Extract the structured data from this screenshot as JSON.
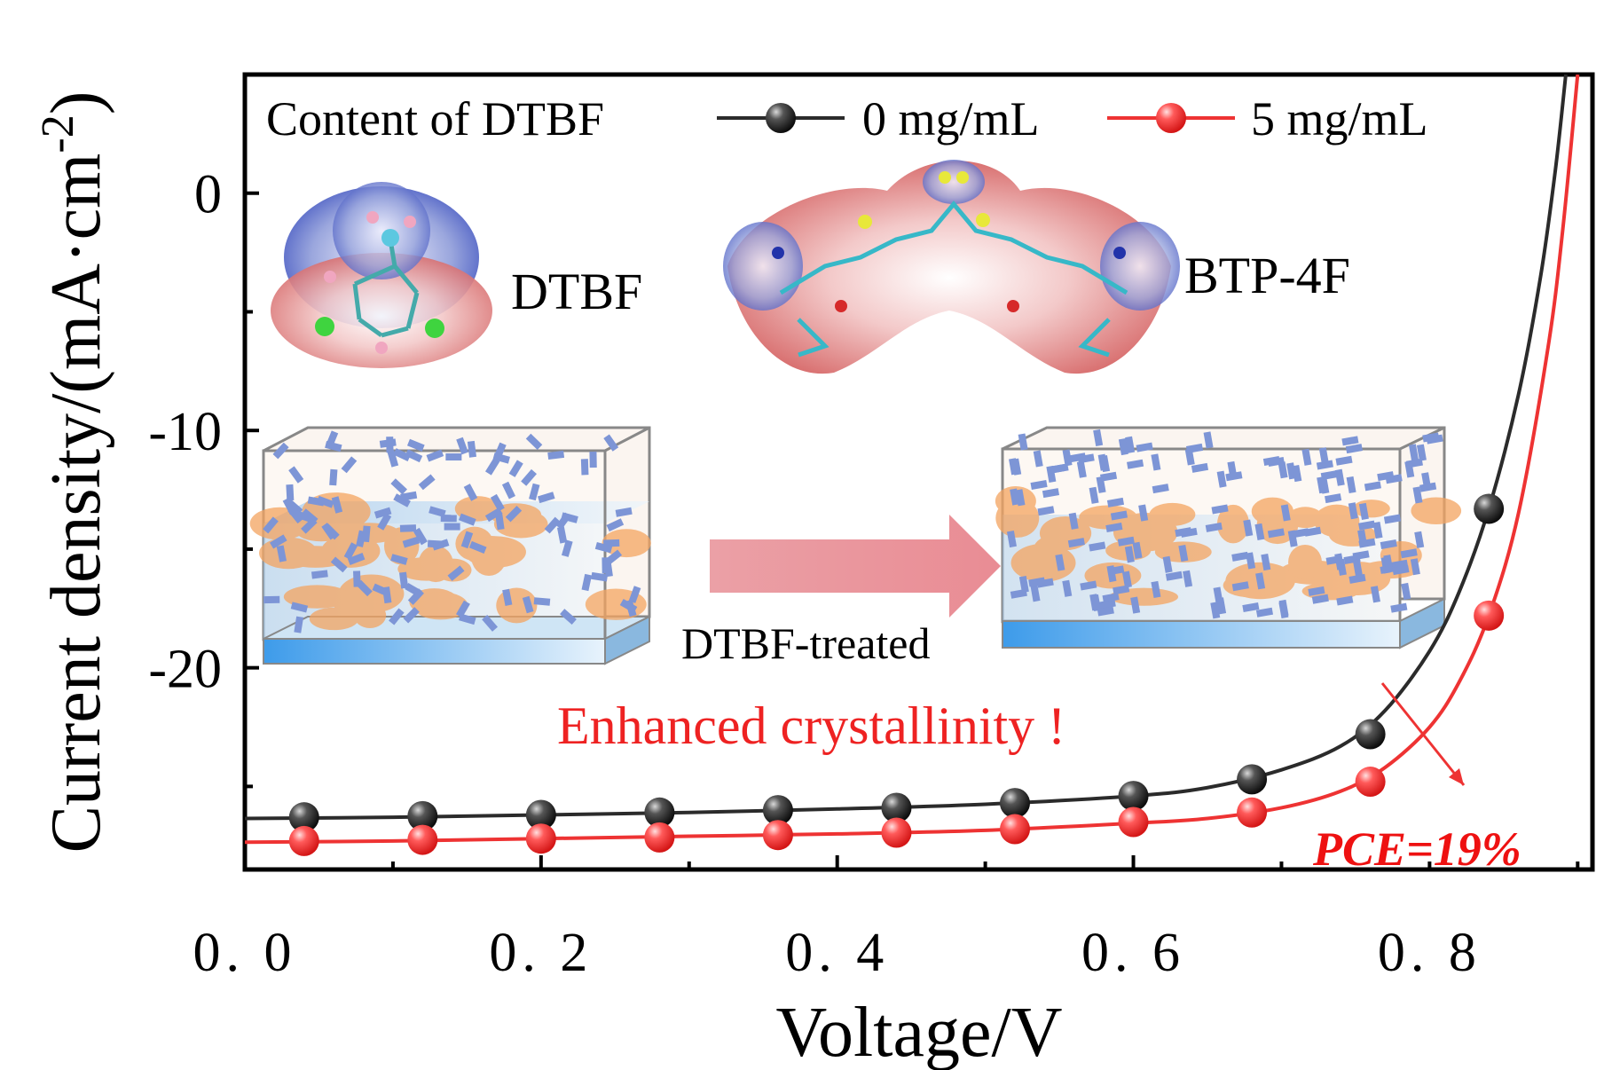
{
  "chart_data": {
    "type": "line",
    "xlabel": "Voltage/V",
    "ylabel_main": "Current density/(mA·cm",
    "ylabel_sup": "-2",
    "ylabel_close": ")",
    "xlim": [
      0.0,
      0.91
    ],
    "ylim": [
      -28.5,
      5
    ],
    "xticks": [
      0.0,
      0.2,
      0.4,
      0.6,
      0.8
    ],
    "xtick_labels": [
      "0. 0",
      "0. 2",
      "0. 4",
      "0. 6",
      "0. 8"
    ],
    "yticks": [
      0,
      -10,
      -20
    ],
    "ytick_labels": [
      "0",
      "-10",
      "-20"
    ],
    "legend_title": "Content of DTBF",
    "series": [
      {
        "name": "0 mg/mL",
        "color": "#2b2b2b",
        "marker": "sphere-black",
        "points": [
          [
            0.04,
            -26.3
          ],
          [
            0.12,
            -26.25
          ],
          [
            0.2,
            -26.2
          ],
          [
            0.28,
            -26.1
          ],
          [
            0.36,
            -26.0
          ],
          [
            0.44,
            -25.9
          ],
          [
            0.52,
            -25.7
          ],
          [
            0.6,
            -25.4
          ],
          [
            0.68,
            -24.7
          ],
          [
            0.76,
            -22.8
          ],
          [
            0.84,
            -13.3
          ]
        ],
        "fit": [
          [
            0.0,
            -26.35
          ],
          [
            0.1,
            -26.3
          ],
          [
            0.2,
            -26.2
          ],
          [
            0.3,
            -26.1
          ],
          [
            0.4,
            -25.95
          ],
          [
            0.5,
            -25.75
          ],
          [
            0.6,
            -25.4
          ],
          [
            0.65,
            -25.05
          ],
          [
            0.7,
            -24.3
          ],
          [
            0.74,
            -23.3
          ],
          [
            0.77,
            -21.8
          ],
          [
            0.8,
            -19.3
          ],
          [
            0.82,
            -16.8
          ],
          [
            0.84,
            -13.3
          ],
          [
            0.86,
            -8.5
          ],
          [
            0.875,
            -3.5
          ],
          [
            0.885,
            1.0
          ],
          [
            0.892,
            5.0
          ]
        ]
      },
      {
        "name": "5 mg/mL",
        "color": "#ee3333",
        "marker": "sphere-red",
        "points": [
          [
            0.04,
            -27.3
          ],
          [
            0.12,
            -27.25
          ],
          [
            0.2,
            -27.2
          ],
          [
            0.28,
            -27.15
          ],
          [
            0.36,
            -27.05
          ],
          [
            0.44,
            -26.95
          ],
          [
            0.52,
            -26.8
          ],
          [
            0.6,
            -26.5
          ],
          [
            0.68,
            -26.1
          ],
          [
            0.76,
            -24.8
          ],
          [
            0.84,
            -17.8
          ]
        ],
        "fit": [
          [
            0.0,
            -27.35
          ],
          [
            0.1,
            -27.3
          ],
          [
            0.2,
            -27.2
          ],
          [
            0.3,
            -27.1
          ],
          [
            0.4,
            -27.0
          ],
          [
            0.5,
            -26.85
          ],
          [
            0.6,
            -26.55
          ],
          [
            0.65,
            -26.35
          ],
          [
            0.7,
            -25.9
          ],
          [
            0.74,
            -25.2
          ],
          [
            0.77,
            -24.2
          ],
          [
            0.8,
            -22.5
          ],
          [
            0.82,
            -20.6
          ],
          [
            0.84,
            -17.8
          ],
          [
            0.86,
            -13.5
          ],
          [
            0.88,
            -6.5
          ],
          [
            0.89,
            -1.5
          ],
          [
            0.9,
            5.0
          ]
        ]
      }
    ]
  },
  "annotations": {
    "dtbf_label": "DTBF",
    "btp_label": "BTP-4F",
    "treated_label": "DTBF-treated",
    "crystallinity_note": "Enhanced crystallinity !",
    "pce_label": "PCE=19%"
  }
}
